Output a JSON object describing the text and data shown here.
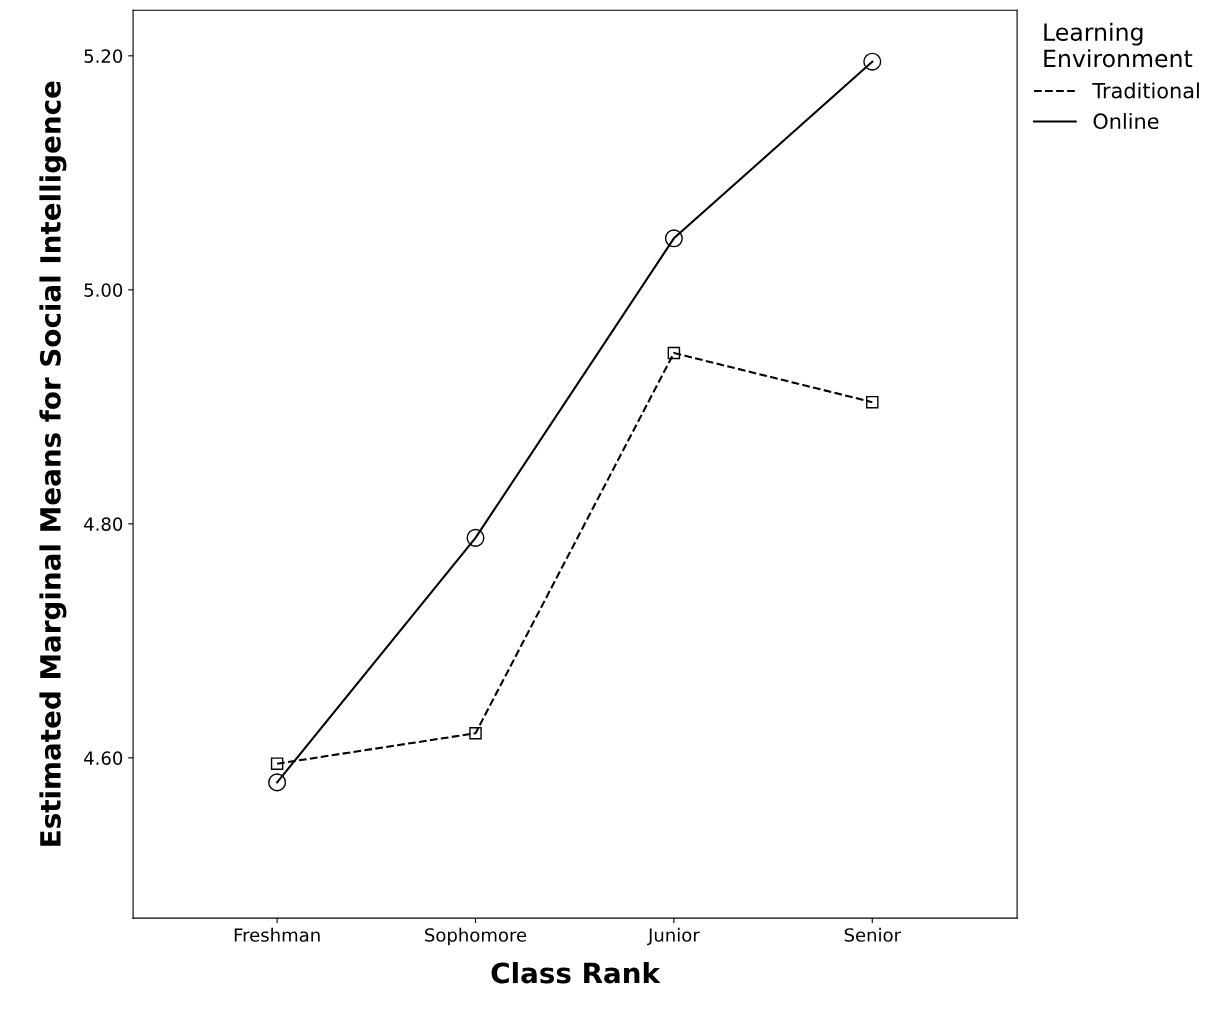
{
  "chart_data": {
    "type": "line",
    "xlabel": "Class Rank",
    "ylabel": "Estimated Marginal Means for Social Intelligence",
    "legend_title": "Learning\nEnvironment",
    "categories": [
      "Freshman",
      "Sophomore",
      "Junior",
      "Senior"
    ],
    "series": [
      {
        "name": "Traditional",
        "color": "#000000",
        "values": [
          4.595,
          4.621,
          4.946,
          4.904
        ],
        "line_style": "dashed",
        "marker": "square"
      },
      {
        "name": "Online",
        "color": "#000000",
        "values": [
          4.579,
          4.788,
          5.044,
          5.195
        ],
        "line_style": "solid",
        "marker": "circle"
      }
    ],
    "ylim": [
      4.463,
      5.239
    ],
    "yticks": [
      {
        "value": 4.6,
        "label": "4.60"
      },
      {
        "value": 4.8,
        "label": "4.80"
      },
      {
        "value": 5.0,
        "label": "5.00"
      },
      {
        "value": 5.2,
        "label": "5.20"
      }
    ],
    "grid": false,
    "legend": "top right"
  }
}
